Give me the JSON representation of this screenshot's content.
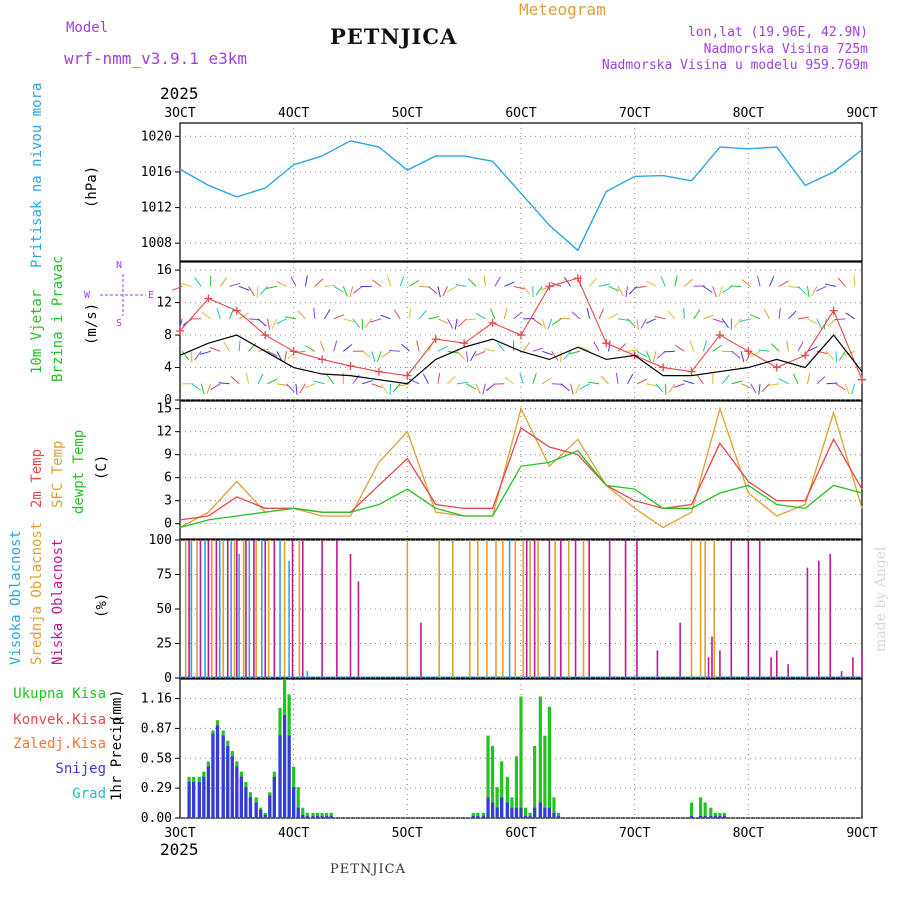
{
  "header": {
    "model_label": "Model",
    "model_name": "wrf-nmm_v3.9.1 e3km",
    "title": "PETNJICA",
    "meteogram": "Meteogram",
    "lonlat": "lon,lat (19.96E, 42.9N)",
    "elevation": "Nadmorska Visina 725m",
    "model_elevation": "Nadmorska Visina u modelu 959.769m",
    "year_top": "2025",
    "year_bottom": "2025",
    "footer": "PETNJICA",
    "watermark": "made by Angel"
  },
  "colors": {
    "pressure": "#2aa6e8",
    "wind_label": "#22c422",
    "wind_speed": "#000000",
    "gust": "#e84848",
    "temp2m": "#e84848",
    "sfc_temp": "#e0a030",
    "dewpt": "#22c422",
    "high_cloud": "#2aa6e8",
    "mid_cloud": "#e0a030",
    "low_cloud": "#c01890",
    "total_precip": "#22c422",
    "conv_precip": "#e84848",
    "frz_rain": "#f07830",
    "snow": "#3838e0",
    "graupel": "#20c0c0",
    "compass": "#a040e0"
  },
  "chart_data": [
    {
      "panel": "pressure",
      "type": "line",
      "ylabel_name": "Pritisak na nivou mora",
      "ylabel_unit": "(hPa)",
      "x_ticks": [
        "3OCT",
        "4OCT",
        "5OCT",
        "6OCT",
        "7OCT",
        "8OCT",
        "9OCT"
      ],
      "x": [
        0,
        0.25,
        0.5,
        0.75,
        1,
        1.25,
        1.5,
        1.75,
        2,
        2.25,
        2.5,
        2.75,
        3,
        3.25,
        3.5,
        3.75,
        4,
        4.25,
        4.5,
        4.75,
        5,
        5.25,
        5.5,
        5.75,
        6
      ],
      "ylim": [
        1006,
        1021.5
      ],
      "yticks": [
        1008,
        1012,
        1016,
        1020
      ],
      "values": [
        1016.3,
        1014.5,
        1013.2,
        1014.2,
        1016.8,
        1017.8,
        1019.5,
        1018.8,
        1016.2,
        1017.8,
        1017.8,
        1017.2,
        1013.6,
        1010.0,
        1007.2,
        1013.8,
        1015.5,
        1015.6,
        1015.0,
        1018.8,
        1018.6,
        1018.8,
        1014.5,
        1016.0,
        1018.5
      ]
    },
    {
      "panel": "wind",
      "type": "line",
      "ylabel_name": "10m Vjetar",
      "ylabel_name2": "Brzina i Pravac",
      "ylabel_unit": "(m/s)",
      "compass": [
        "N",
        "E",
        "W",
        "S"
      ],
      "ylim": [
        0,
        17
      ],
      "yticks": [
        0,
        4,
        8,
        12,
        16
      ],
      "x": [
        0,
        0.25,
        0.5,
        0.75,
        1,
        1.25,
        1.5,
        1.75,
        2,
        2.25,
        2.5,
        2.75,
        3,
        3.25,
        3.5,
        3.75,
        4,
        4.25,
        4.5,
        4.75,
        5,
        5.25,
        5.5,
        5.75,
        6
      ],
      "series": [
        {
          "name": "speed",
          "values": [
            5.5,
            7.0,
            8.0,
            6.0,
            4.0,
            3.2,
            3.0,
            2.5,
            2.0,
            5.0,
            6.5,
            7.5,
            6.0,
            5.0,
            6.5,
            5.0,
            5.5,
            3.0,
            3.0,
            3.5,
            4.0,
            5.0,
            4.0,
            8.0,
            3.5
          ]
        },
        {
          "name": "gust",
          "values": [
            8.5,
            12.5,
            11.0,
            8.0,
            6.0,
            5.0,
            4.2,
            3.5,
            3.0,
            7.5,
            7.0,
            9.5,
            8.0,
            14.0,
            15.0,
            7.0,
            5.5,
            4.0,
            3.5,
            8.0,
            6.0,
            4.0,
            5.5,
            11.0,
            2.5
          ]
        }
      ]
    },
    {
      "panel": "temperature",
      "type": "line",
      "ylabel_name": "2m Temp",
      "ylabel_name2": "SFC Temp",
      "ylabel_name3": "dewpt Temp",
      "ylabel_unit": "(C)",
      "ylim": [
        -2,
        16
      ],
      "yticks": [
        0,
        3,
        6,
        9,
        12,
        15
      ],
      "x": [
        0,
        0.25,
        0.5,
        0.75,
        1,
        1.25,
        1.5,
        1.75,
        2,
        2.25,
        2.5,
        2.75,
        3,
        3.25,
        3.5,
        3.75,
        4,
        4.25,
        4.5,
        4.75,
        5,
        5.25,
        5.5,
        5.75,
        6
      ],
      "series": [
        {
          "name": "2m Temp",
          "values": [
            0.5,
            1.0,
            3.5,
            2.0,
            2.0,
            1.5,
            1.5,
            5.0,
            8.5,
            2.5,
            2.0,
            2.0,
            12.5,
            10.0,
            9.0,
            5.0,
            3.0,
            2.0,
            2.5,
            10.5,
            5.5,
            3.0,
            3.0,
            11.0,
            4.5
          ]
        },
        {
          "name": "SFC Temp",
          "values": [
            -0.5,
            1.5,
            5.5,
            1.5,
            2.0,
            1.0,
            1.0,
            8.0,
            12.0,
            1.5,
            1.0,
            1.0,
            15.0,
            7.5,
            11.0,
            5.0,
            2.0,
            -0.5,
            1.5,
            15.0,
            4.0,
            1.0,
            2.5,
            14.5,
            2.0
          ]
        },
        {
          "name": "dewpt Temp",
          "values": [
            -0.5,
            0.5,
            1.0,
            1.5,
            2.0,
            1.5,
            1.5,
            2.5,
            4.5,
            2.0,
            1.0,
            1.0,
            7.5,
            8.0,
            9.5,
            5.0,
            4.5,
            2.0,
            2.0,
            4.0,
            5.0,
            2.5,
            2.0,
            5.0,
            4.0
          ]
        }
      ]
    },
    {
      "panel": "clouds",
      "type": "bar",
      "ylabel_name": "Visoka Oblacnost",
      "ylabel_name2": "Srednja Oblacnost",
      "ylabel_name3": "Niska Oblacnost",
      "ylabel_unit": "(%)",
      "ylim": [
        0,
        100
      ],
      "yticks": [
        0,
        25,
        50,
        75,
        100
      ],
      "series": [
        {
          "name": "Visoka Oblacnost",
          "x": [
            0.1,
            0.22,
            0.35,
            0.45,
            0.52,
            0.61,
            0.72,
            0.88,
            0.96,
            1.12,
            2.9
          ],
          "values": [
            100,
            100,
            100,
            100,
            90,
            100,
            100,
            100,
            85,
            5,
            100
          ]
        },
        {
          "name": "Srednja Oblacnost",
          "x": [
            0.05,
            0.15,
            0.28,
            0.38,
            0.48,
            0.56,
            0.67,
            0.78,
            0.92,
            1.05,
            2.0,
            2.28,
            2.4,
            2.55,
            2.62,
            2.7,
            2.78,
            2.84,
            2.95,
            3.02,
            3.08,
            3.15,
            3.3,
            3.42,
            3.55,
            4.5,
            4.58,
            4.62,
            4.7
          ],
          "values": [
            100,
            100,
            100,
            100,
            100,
            100,
            100,
            100,
            100,
            100,
            100,
            100,
            100,
            100,
            100,
            100,
            100,
            100,
            100,
            100,
            100,
            100,
            100,
            100,
            100,
            100,
            100,
            100,
            100
          ]
        },
        {
          "name": "Niska Oblacnost",
          "x": [
            0.08,
            0.18,
            0.25,
            0.32,
            0.42,
            0.5,
            0.58,
            0.65,
            0.75,
            0.83,
            0.99,
            1.08,
            1.25,
            1.38,
            1.5,
            1.57,
            2.12,
            3.05,
            3.12,
            3.25,
            3.35,
            3.48,
            3.6,
            3.78,
            3.92,
            4.02,
            4.2,
            4.4,
            4.65,
            4.68,
            4.75,
            4.85,
            5.0,
            5.1,
            5.2,
            5.25,
            5.35,
            5.52,
            5.62,
            5.72,
            5.82,
            5.92,
            6.0
          ],
          "values": [
            100,
            100,
            100,
            100,
            100,
            100,
            100,
            100,
            100,
            100,
            100,
            100,
            100,
            100,
            90,
            70,
            40,
            100,
            100,
            100,
            100,
            100,
            100,
            100,
            100,
            100,
            20,
            40,
            15,
            30,
            20,
            100,
            100,
            100,
            15,
            20,
            10,
            80,
            85,
            90,
            5,
            15,
            20
          ]
        }
      ]
    },
    {
      "panel": "precipitation",
      "type": "bar",
      "ylabel_name": "1hr Precip",
      "ylabel_unit": "(mm)",
      "legend": [
        "Ukupna Kisa",
        "Konvek.Kisa",
        "Zaledj.Kisa",
        "Snijeg",
        "Grad"
      ],
      "ylim": [
        0,
        1.35
      ],
      "yticks": [
        0,
        0.29,
        0.58,
        0.87,
        1.16
      ],
      "x_ticks": [
        "3OCT",
        "4OCT",
        "5OCT",
        "6OCT",
        "7OCT",
        "8OCT",
        "9OCT"
      ],
      "x": [
        0.08,
        0.12,
        0.17,
        0.21,
        0.25,
        0.29,
        0.33,
        0.38,
        0.42,
        0.46,
        0.5,
        0.54,
        0.58,
        0.62,
        0.67,
        0.71,
        0.75,
        0.79,
        0.83,
        0.88,
        0.92,
        0.96,
        1.0,
        1.04,
        1.08,
        1.12,
        1.17,
        1.21,
        1.25,
        1.29,
        1.33,
        2.58,
        2.62,
        2.67,
        2.71,
        2.75,
        2.79,
        2.83,
        2.88,
        2.92,
        2.96,
        3.0,
        3.04,
        3.08,
        3.12,
        3.17,
        3.21,
        3.25,
        3.29,
        3.33,
        4.5,
        4.58,
        4.62,
        4.67,
        4.71,
        4.75,
        4.79
      ],
      "series": [
        {
          "name": "Ukupna Kisa",
          "values": [
            0.4,
            0.4,
            0.4,
            0.45,
            0.55,
            0.85,
            0.95,
            0.85,
            0.75,
            0.65,
            0.55,
            0.45,
            0.35,
            0.25,
            0.2,
            0.1,
            0.05,
            0.25,
            0.45,
            1.07,
            1.35,
            1.2,
            0.5,
            0.3,
            0.1,
            0.05,
            0.05,
            0.05,
            0.05,
            0.05,
            0.05,
            0.05,
            0.05,
            0.05,
            0.8,
            0.7,
            0.3,
            0.55,
            0.4,
            0.2,
            0.6,
            1.18,
            0.1,
            0.05,
            0.7,
            1.18,
            0.8,
            1.08,
            0.2,
            0.05,
            0.15,
            0.2,
            0.15,
            0.1,
            0.05,
            0.05,
            0.05
          ]
        },
        {
          "name": "Snijeg",
          "values": [
            0.35,
            0.35,
            0.35,
            0.4,
            0.5,
            0.82,
            0.9,
            0.8,
            0.7,
            0.6,
            0.5,
            0.4,
            0.3,
            0.2,
            0.15,
            0.08,
            0.03,
            0.22,
            0.4,
            0.8,
            1.0,
            0.8,
            0.3,
            0.1,
            0.03,
            0.02,
            0.02,
            0.02,
            0.02,
            0.02,
            0.02,
            0.02,
            0.02,
            0.02,
            0.2,
            0.15,
            0.1,
            0.2,
            0.15,
            0.1,
            0.1,
            0.1,
            0.02,
            0.02,
            0.1,
            0.15,
            0.1,
            0.1,
            0.05,
            0.02,
            0.02,
            0.02,
            0.02,
            0.02,
            0.02,
            0.02,
            0.02
          ]
        }
      ]
    }
  ]
}
